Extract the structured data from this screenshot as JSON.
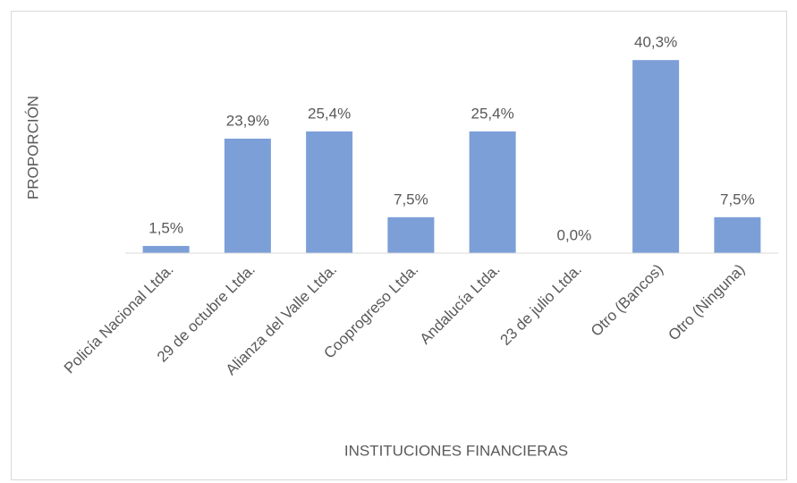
{
  "chart_data": {
    "type": "bar",
    "x_label": "INSTITUCIONES FINANCIERAS",
    "y_label": "PROPORCIÓN",
    "categories": [
      "Policía Nacional Ltda.",
      "29 de octubre Ltda.",
      "Alianza del Valle Ltda.",
      "Cooprogreso Ltda.",
      "Andalucía Ltda.",
      "23 de julio Ltda.",
      "Otro (Bancos)",
      "Otro (Ninguna)"
    ],
    "values": [
      1.5,
      23.9,
      25.4,
      7.5,
      25.4,
      0.0,
      40.3,
      7.5
    ],
    "value_labels": [
      "1,5%",
      "23,9%",
      "25,4%",
      "7,5%",
      "25,4%",
      "0,0%",
      "40,3%",
      "7,5%"
    ],
    "color": "#7c9fd8",
    "ylim": [
      0,
      45
    ]
  }
}
